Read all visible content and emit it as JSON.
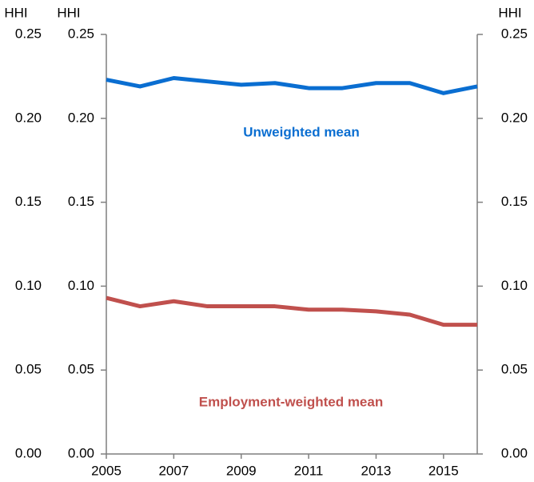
{
  "chart_data": {
    "type": "line",
    "y_label": "HHI",
    "x": [
      2005,
      2006,
      2007,
      2008,
      2009,
      2010,
      2011,
      2012,
      2013,
      2014,
      2015,
      2016
    ],
    "xlim": [
      2005,
      2016
    ],
    "xticks": [
      2005,
      2007,
      2009,
      2011,
      2013,
      2015
    ],
    "ylim": [
      0,
      0.25
    ],
    "yticks": [
      {
        "value": 0,
        "label": "0.00"
      },
      0.05,
      {
        "value": 0.1,
        "label": "0.10"
      },
      0.15,
      {
        "value": 0.2,
        "label": "0.20"
      },
      0.25
    ],
    "series": [
      {
        "name": "Unweighted mean",
        "color": "#0a6ed1",
        "values": [
          0.223,
          0.219,
          0.224,
          0.222,
          0.22,
          0.221,
          0.218,
          0.218,
          0.221,
          0.221,
          0.215,
          0.219
        ]
      },
      {
        "name": "Employment-weighted mean",
        "color": "#c0504d",
        "values": [
          0.093,
          0.088,
          0.091,
          0.088,
          0.088,
          0.088,
          0.086,
          0.086,
          0.085,
          0.083,
          0.077,
          0.077
        ]
      }
    ]
  }
}
